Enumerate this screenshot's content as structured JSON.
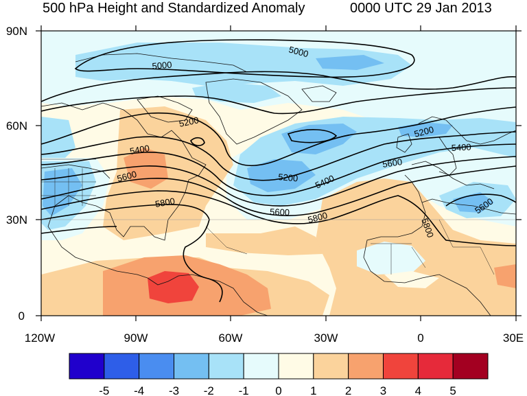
{
  "title": "500 hPa Height and Standardized Anomaly",
  "valid_time": "0000 UTC 29 Jan 2013",
  "axes": {
    "lat_ticks": [
      "90N",
      "60N",
      "30N",
      "0"
    ],
    "lon_ticks": [
      "120W",
      "90W",
      "60W",
      "30W",
      "0",
      "30E"
    ]
  },
  "contour_labels": [
    "5000",
    "5000",
    "5200",
    "5200",
    "5200",
    "5400",
    "5400",
    "5400",
    "5600",
    "5600",
    "5600",
    "5600",
    "5800",
    "5800",
    "5800"
  ],
  "colorbar": {
    "labels": [
      "-5",
      "-4",
      "-3",
      "-2",
      "-1",
      "0",
      "1",
      "2",
      "3",
      "4",
      "5"
    ],
    "colors": [
      "#2000cc",
      "#2e5ee8",
      "#4a8df0",
      "#74bff2",
      "#a8e2f8",
      "#e6fbfc",
      "#fffbe6",
      "#fbd39c",
      "#f7a26e",
      "#f0443c",
      "#e62a3a",
      "#a30021"
    ]
  },
  "palette": {
    "background": "#fffbe6",
    "light_blue": "#e6fbfc",
    "blue1": "#a8e2f8",
    "blue2": "#74bff2",
    "orange1": "#fbd39c",
    "orange2": "#f7a26e",
    "red1": "#f0443c"
  }
}
